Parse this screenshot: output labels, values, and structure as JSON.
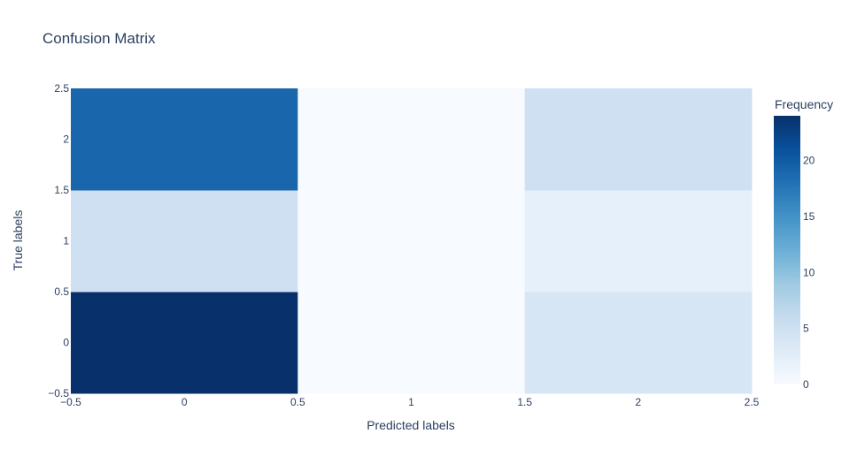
{
  "chart_data": {
    "type": "heatmap",
    "title": "Confusion Matrix",
    "xlabel": "Predicted labels",
    "ylabel": "True labels",
    "x": [
      0,
      1,
      2
    ],
    "y": [
      0,
      1,
      2
    ],
    "z": [
      [
        24,
        0,
        4
      ],
      [
        5,
        0,
        2
      ],
      [
        19,
        0,
        5
      ]
    ],
    "xlim": [
      -0.5,
      2.5
    ],
    "ylim": [
      -0.5,
      2.5
    ],
    "x_ticks": [
      "−0.5",
      "0",
      "0.5",
      "1",
      "1.5",
      "2",
      "2.5"
    ],
    "y_ticks": [
      "−0.5",
      "0",
      "0.5",
      "1",
      "1.5",
      "2",
      "2.5"
    ],
    "colorscale": "Blues",
    "zmin": 0,
    "zmax": 24,
    "colorbar": {
      "title": "Frequency",
      "ticks": [
        "0",
        "5",
        "10",
        "15",
        "20"
      ]
    },
    "colors": {
      "low": "#f7fbff",
      "high": "#08306b"
    }
  }
}
